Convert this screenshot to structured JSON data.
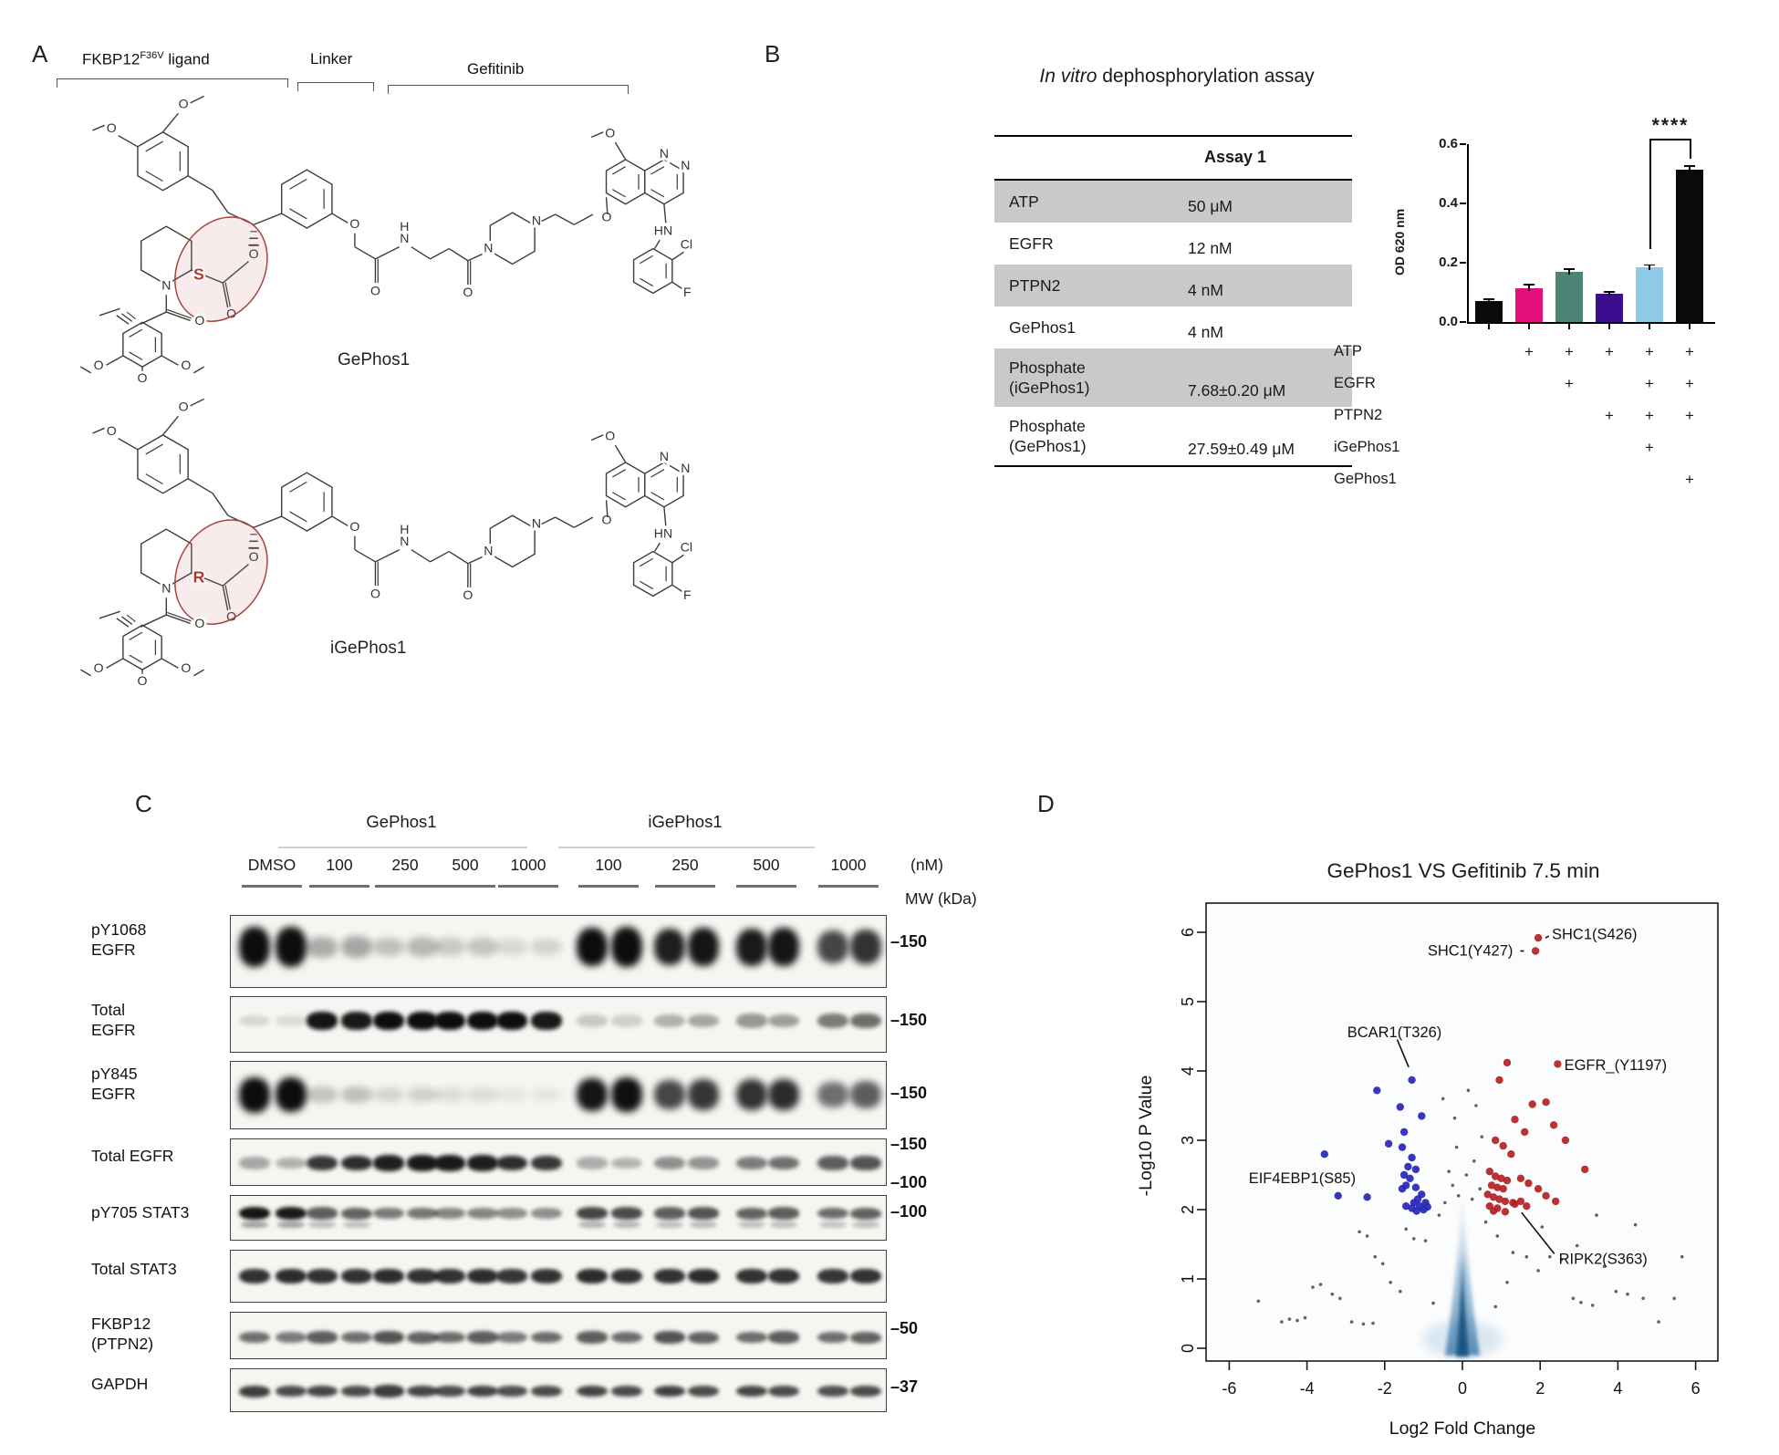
{
  "panel_labels": {
    "a": "A",
    "b": "B",
    "c": "C",
    "d": "D"
  },
  "panel_a": {
    "region_labels": {
      "fkbp_base": "FKBP12",
      "fkbp_sup": "F36V",
      "fkbp_rest": " ligand",
      "linker": "Linker",
      "gefitinib": "Gefitinib"
    },
    "molecules": [
      {
        "name": "GePhos1",
        "stereo": "S"
      },
      {
        "name": "iGePhos1",
        "stereo": "R"
      }
    ],
    "atoms": {
      "O": "O",
      "N": "N",
      "H": "H",
      "HN": "HN",
      "Cl": "Cl",
      "F": "F"
    }
  },
  "panel_b": {
    "title_italic": "In vitro",
    "title_rest": " dephosphorylation assay",
    "table": {
      "header": "Assay 1",
      "rows": [
        {
          "label_lines": [
            "ATP"
          ],
          "value": "50 μM",
          "shaded": true
        },
        {
          "label_lines": [
            "EGFR"
          ],
          "value": "12 nM",
          "shaded": false
        },
        {
          "label_lines": [
            "PTPN2"
          ],
          "value": "4 nM",
          "shaded": true
        },
        {
          "label_lines": [
            "GePhos1"
          ],
          "value": "4 nM",
          "shaded": false
        },
        {
          "label_lines": [
            "Phosphate",
            "(iGePhos1)"
          ],
          "value": "7.68±0.20 μM",
          "shaded": true
        },
        {
          "label_lines": [
            "Phosphate",
            "(GePhos1)"
          ],
          "value": "27.59±0.49 μM",
          "shaded": false
        }
      ]
    },
    "chart_data": {
      "type": "bar",
      "ylabel": "OD 620 nm",
      "ylim": [
        0,
        0.6
      ],
      "ytick_labels": [
        "0.0",
        "0.2",
        "0.4",
        "0.6"
      ],
      "values": [
        0.07,
        0.115,
        0.17,
        0.095,
        0.185,
        0.515
      ],
      "errors": [
        0.006,
        0.01,
        0.008,
        0.007,
        0.007,
        0.012
      ],
      "colors": [
        "#0a0a0a",
        "#e40f7d",
        "#4d8276",
        "#3b0d8e",
        "#8ecae6",
        "#0a0a0a"
      ],
      "significance": {
        "label": "****",
        "between": [
          5,
          6
        ]
      },
      "condition_rows": [
        {
          "label": "ATP",
          "cells": [
            "",
            "+",
            "+",
            "+",
            "+",
            "+"
          ]
        },
        {
          "label": "EGFR",
          "cells": [
            "",
            "",
            "+",
            "",
            "+",
            "+"
          ]
        },
        {
          "label": "PTPN2",
          "cells": [
            "",
            "",
            "",
            "+",
            "+",
            "+"
          ]
        },
        {
          "label": "iGePhos1",
          "cells": [
            "",
            "",
            "",
            "",
            "+",
            ""
          ]
        },
        {
          "label": "GePhos1",
          "cells": [
            "",
            "",
            "",
            "",
            "",
            "+"
          ]
        }
      ]
    }
  },
  "panel_c": {
    "group_labels": [
      "GePhos1",
      "iGePhos1"
    ],
    "lane_labels": [
      "DMSO",
      "100",
      "250",
      "500",
      "1000",
      "100",
      "250",
      "500",
      "1000"
    ],
    "unit_label": "(nM)",
    "mw_header": "MW (kDa)",
    "blots": [
      {
        "label_lines": [
          "pY1068",
          "EGFR"
        ],
        "mw": [
          "–150"
        ],
        "intensities": [
          1,
          1,
          0.3,
          0.32,
          0.22,
          0.25,
          0.18,
          0.2,
          0.12,
          0.14,
          0.95,
          1,
          0.88,
          0.92,
          0.9,
          0.92,
          0.72,
          0.8
        ]
      },
      {
        "label_lines": [
          "Total",
          "EGFR"
        ],
        "mw": [
          "–150"
        ],
        "intensities": [
          0.12,
          0.1,
          0.92,
          0.9,
          1,
          1,
          1,
          0.98,
          0.95,
          0.9,
          0.18,
          0.15,
          0.28,
          0.32,
          0.38,
          0.35,
          0.5,
          0.55
        ]
      },
      {
        "label_lines": [
          "pY845",
          "EGFR"
        ],
        "mw": [
          "–150"
        ],
        "intensities": [
          1,
          0.98,
          0.2,
          0.22,
          0.13,
          0.15,
          0.1,
          0.1,
          0.06,
          0.07,
          0.92,
          0.94,
          0.72,
          0.78,
          0.8,
          0.82,
          0.55,
          0.62
        ]
      },
      {
        "label_lines": [
          "Total EGFR"
        ],
        "mw": [
          "–150",
          "–100"
        ],
        "intensities": [
          0.32,
          0.28,
          0.78,
          0.82,
          0.88,
          0.9,
          0.9,
          0.88,
          0.82,
          0.78,
          0.3,
          0.27,
          0.42,
          0.4,
          0.5,
          0.55,
          0.62,
          0.66
        ]
      },
      {
        "label_lines": [
          "pY705 STAT3"
        ],
        "mw": [
          "–100"
        ],
        "intensities": [
          0.92,
          0.9,
          0.62,
          0.6,
          0.5,
          0.52,
          0.46,
          0.46,
          0.42,
          0.42,
          0.72,
          0.7,
          0.62,
          0.66,
          0.6,
          0.62,
          0.56,
          0.6
        ]
      },
      {
        "label_lines": [
          "Total STAT3"
        ],
        "mw": [],
        "intensities": [
          0.8,
          0.82,
          0.8,
          0.8,
          0.82,
          0.8,
          0.8,
          0.82,
          0.78,
          0.8,
          0.82,
          0.8,
          0.8,
          0.82,
          0.8,
          0.8,
          0.78,
          0.8
        ]
      },
      {
        "label_lines": [
          "FKBP12",
          "(PTPN2)"
        ],
        "mw": [
          "–50"
        ],
        "intensities": [
          0.55,
          0.5,
          0.62,
          0.55,
          0.66,
          0.6,
          0.56,
          0.62,
          0.5,
          0.56,
          0.62,
          0.56,
          0.66,
          0.6,
          0.56,
          0.62,
          0.55,
          0.6
        ]
      },
      {
        "label_lines": [
          "GAPDH"
        ],
        "mw": [
          "–37"
        ],
        "intensities": [
          0.75,
          0.7,
          0.72,
          0.7,
          0.76,
          0.72,
          0.7,
          0.73,
          0.68,
          0.7,
          0.73,
          0.7,
          0.74,
          0.7,
          0.72,
          0.7,
          0.68,
          0.7
        ]
      }
    ]
  },
  "panel_d": {
    "title": "GePhos1 VS Gefitinib 7.5 min",
    "xlabel": "Log2 Fold Change",
    "ylabel": "-Log10 P Value",
    "chart_data": {
      "type": "scatter",
      "xlim": [
        -6.6,
        6.6
      ],
      "ylim": [
        -0.2,
        6.6
      ],
      "xticks": [
        -6,
        -4,
        -2,
        0,
        2,
        4,
        6
      ],
      "yticks": [
        0,
        1,
        2,
        3,
        4,
        5,
        6
      ],
      "series": [
        {
          "name": "increased",
          "color": "#b22222",
          "points": [
            [
              1.95,
              5.92
            ],
            [
              1.88,
              5.73
            ],
            [
              1.15,
              4.12
            ],
            [
              2.45,
              4.1
            ],
            [
              0.95,
              3.87
            ],
            [
              1.8,
              3.52
            ],
            [
              2.15,
              3.55
            ],
            [
              1.35,
              3.3
            ],
            [
              2.35,
              3.22
            ],
            [
              1.6,
              3.12
            ],
            [
              0.85,
              3.0
            ],
            [
              1.05,
              2.92
            ],
            [
              1.25,
              2.8
            ],
            [
              2.65,
              3.0
            ],
            [
              3.15,
              2.58
            ],
            [
              0.7,
              2.55
            ],
            [
              0.85,
              2.48
            ],
            [
              1.0,
              2.45
            ],
            [
              1.15,
              2.42
            ],
            [
              0.75,
              2.35
            ],
            [
              0.9,
              2.32
            ],
            [
              1.05,
              2.3
            ],
            [
              1.5,
              2.45
            ],
            [
              1.7,
              2.38
            ],
            [
              1.95,
              2.3
            ],
            [
              0.65,
              2.22
            ],
            [
              0.8,
              2.18
            ],
            [
              0.95,
              2.15
            ],
            [
              1.1,
              2.12
            ],
            [
              1.3,
              2.1
            ],
            [
              1.5,
              2.12
            ],
            [
              0.7,
              2.05
            ],
            [
              0.9,
              2.02
            ],
            [
              1.65,
              2.05
            ],
            [
              2.15,
              2.2
            ],
            [
              2.4,
              2.12
            ],
            [
              1.35,
              2.08
            ],
            [
              0.8,
              1.98
            ],
            [
              1.1,
              1.97
            ]
          ]
        },
        {
          "name": "decreased",
          "color": "#2626b8",
          "points": [
            [
              -1.3,
              3.87
            ],
            [
              -2.2,
              3.72
            ],
            [
              -1.6,
              3.48
            ],
            [
              -1.5,
              3.12
            ],
            [
              -1.05,
              3.35
            ],
            [
              -1.9,
              2.95
            ],
            [
              -3.55,
              2.8
            ],
            [
              -1.55,
              2.9
            ],
            [
              -1.3,
              2.75
            ],
            [
              -1.4,
              2.62
            ],
            [
              -1.2,
              2.58
            ],
            [
              -1.5,
              2.5
            ],
            [
              -1.35,
              2.45
            ],
            [
              -1.45,
              2.35
            ],
            [
              -1.2,
              2.32
            ],
            [
              -1.55,
              2.3
            ],
            [
              -2.45,
              2.18
            ],
            [
              -1.05,
              2.22
            ],
            [
              -1.15,
              2.15
            ],
            [
              -0.95,
              2.1
            ],
            [
              -1.25,
              2.1
            ],
            [
              -1.1,
              2.05
            ],
            [
              -1.0,
              2.0
            ],
            [
              -1.3,
              2.02
            ],
            [
              -1.45,
              2.05
            ],
            [
              -3.2,
              2.2
            ],
            [
              -0.9,
              2.04
            ],
            [
              -1.18,
              1.98
            ]
          ]
        },
        {
          "name": "not-significant",
          "color": "#3c3c3c",
          "points": [
            [
              0.15,
              3.72
            ],
            [
              0.35,
              3.5
            ],
            [
              -0.2,
              3.32
            ],
            [
              -0.5,
              3.6
            ],
            [
              0.5,
              3.05
            ],
            [
              -0.15,
              2.9
            ],
            [
              0.3,
              2.7
            ],
            [
              -0.35,
              2.55
            ],
            [
              0.1,
              2.5
            ],
            [
              -0.25,
              2.35
            ],
            [
              0.45,
              2.3
            ],
            [
              -0.1,
              2.2
            ],
            [
              0.25,
              2.15
            ],
            [
              -0.45,
              2.1
            ],
            [
              0.6,
              1.82
            ],
            [
              0.9,
              1.62
            ],
            [
              1.3,
              1.38
            ],
            [
              1.65,
              1.32
            ],
            [
              1.95,
              1.12
            ],
            [
              2.25,
              1.32
            ],
            [
              2.55,
              1.28
            ],
            [
              2.85,
              0.72
            ],
            [
              3.05,
              0.66
            ],
            [
              3.35,
              0.62
            ],
            [
              3.65,
              1.18
            ],
            [
              3.95,
              0.82
            ],
            [
              4.25,
              0.78
            ],
            [
              4.65,
              0.72
            ],
            [
              5.05,
              0.38
            ],
            [
              5.45,
              0.72
            ],
            [
              5.65,
              1.32
            ],
            [
              4.45,
              1.78
            ],
            [
              3.45,
              1.92
            ],
            [
              2.95,
              1.48
            ],
            [
              -0.6,
              1.92
            ],
            [
              -0.95,
              1.55
            ],
            [
              -1.25,
              1.58
            ],
            [
              -1.6,
              0.82
            ],
            [
              -1.85,
              0.95
            ],
            [
              -2.05,
              1.22
            ],
            [
              -2.25,
              1.32
            ],
            [
              -2.45,
              1.62
            ],
            [
              -2.65,
              1.68
            ],
            [
              -2.85,
              0.38
            ],
            [
              -3.15,
              0.72
            ],
            [
              -3.35,
              0.78
            ],
            [
              -3.65,
              0.92
            ],
            [
              -3.85,
              0.88
            ],
            [
              -4.05,
              0.44
            ],
            [
              -4.25,
              0.4
            ],
            [
              -4.45,
              0.42
            ],
            [
              -4.65,
              0.38
            ],
            [
              -5.25,
              0.68
            ],
            [
              -2.55,
              0.35
            ],
            [
              -2.3,
              0.36
            ],
            [
              1.15,
              0.95
            ],
            [
              0.85,
              0.6
            ],
            [
              -0.75,
              0.65
            ],
            [
              2.05,
              1.75
            ],
            [
              -1.45,
              1.72
            ]
          ]
        }
      ],
      "density_center_x": 0
    },
    "annotations": [
      {
        "text": "SHC1(S426)",
        "lx": 2.3,
        "ly": 5.97,
        "anchor": "start",
        "ax": 2.08,
        "ay": 5.9,
        "line": true
      },
      {
        "text": "SHC1(Y427)",
        "lx": 1.3,
        "ly": 5.73,
        "anchor": "end",
        "ax": 1.75,
        "ay": 5.73,
        "line": true
      },
      {
        "text": "BCAR1(T326)",
        "lx": -1.75,
        "ly": 4.55,
        "anchor": "middle",
        "ax": -1.32,
        "ay": 3.97,
        "line": true
      },
      {
        "text": "EGFR_(Y1197)",
        "lx": 2.62,
        "ly": 4.08,
        "anchor": "start",
        "line": false
      },
      {
        "text": "EIF4EBP1(S85)",
        "lx": -5.5,
        "ly": 2.45,
        "anchor": "start",
        "line": false
      },
      {
        "text": "RIPK2(S363)",
        "lx": 2.48,
        "ly": 1.28,
        "anchor": "start",
        "ax": 1.42,
        "ay": 2.03,
        "line": true
      }
    ]
  }
}
